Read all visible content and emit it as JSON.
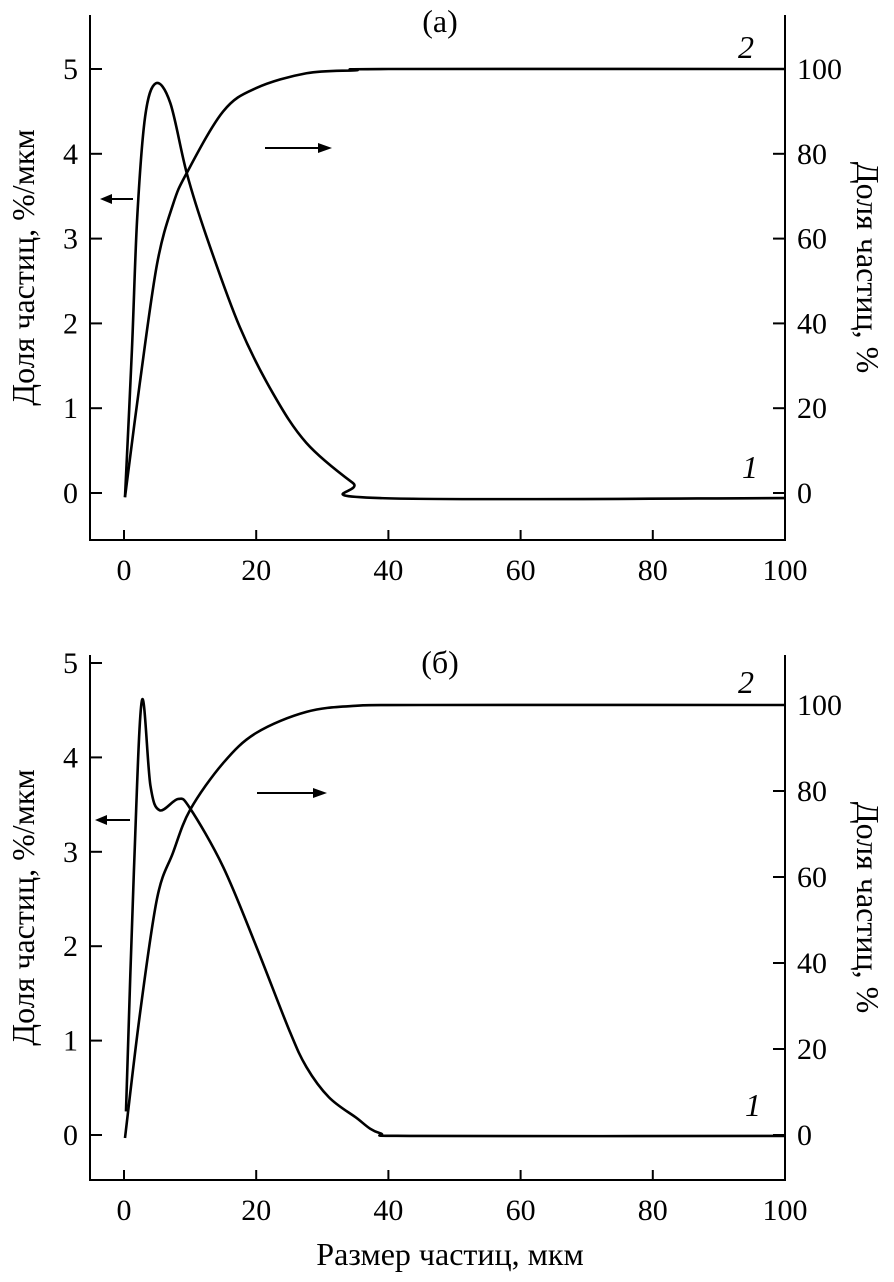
{
  "chart_data": [
    {
      "type": "line",
      "title": "(а)",
      "xlabel": "",
      "ylabel": "Доля частиц, %/мкм",
      "ylabel_right": "Доля частиц, %",
      "xlim": [
        -5,
        100
      ],
      "ylim": [
        -0.3,
        5.5
      ],
      "ylim_right": [
        -6,
        110
      ],
      "xticks": [
        "0",
        "20",
        "40",
        "60",
        "80",
        "100"
      ],
      "yticks": [
        "0",
        "1",
        "2",
        "3",
        "4",
        "5"
      ],
      "yticks_right": [
        "0",
        "20",
        "40",
        "60",
        "80",
        "100"
      ],
      "series": [
        {
          "name": "1",
          "axis": "left",
          "x": [
            0.15,
            1.2,
            2,
            3.2,
            4.8,
            7,
            9.5,
            12.5,
            17.5,
            22.5,
            27.6,
            34.6,
            38.7,
            100
          ],
          "y": [
            -0.05,
            1.69,
            3.25,
            4.44,
            4.83,
            4.6,
            3.77,
            3.02,
            1.96,
            1.18,
            0.59,
            0.12,
            -0.06,
            -0.06
          ]
        },
        {
          "name": "2",
          "axis": "right",
          "x": [
            0.15,
            2.4,
            5,
            7.4,
            9.5,
            15,
            20,
            27.6,
            35,
            40,
            100
          ],
          "y": [
            -1,
            26,
            54,
            68,
            75.5,
            90,
            95.5,
            99,
            99.7,
            100,
            100
          ]
        }
      ]
    },
    {
      "type": "line",
      "title": "(б)",
      "xlabel": "Размер частиц, мкм",
      "ylabel": "Доля частиц, %/мкм",
      "ylabel_right": "Доля частиц, %",
      "xlim": [
        -5,
        100
      ],
      "ylim": [
        -0.3,
        5.3
      ],
      "ylim_right": [
        -7,
        110
      ],
      "xticks": [
        "0",
        "20",
        "40",
        "60",
        "80",
        "100"
      ],
      "yticks": [
        "0",
        "1",
        "2",
        "3",
        "4",
        "5"
      ],
      "yticks_right": [
        "0",
        "20",
        "40",
        "60",
        "80",
        "100"
      ],
      "series": [
        {
          "name": "1",
          "axis": "left",
          "x": [
            0.3,
            1.5,
            2.7,
            4,
            5.4,
            8.2,
            10,
            15,
            20,
            25,
            27.6,
            31,
            35,
            38.7,
            45,
            100
          ],
          "y": [
            0.25,
            2.8,
            4.6,
            3.7,
            3.44,
            3.56,
            3.46,
            2.84,
            2.0,
            1.11,
            0.72,
            0.4,
            0.19,
            0.02,
            -0.01,
            -0.01
          ]
        },
        {
          "name": "2",
          "axis": "right",
          "x": [
            0.15,
            2.4,
            5,
            7.4,
            10,
            15,
            20,
            27.6,
            35,
            45,
            100
          ],
          "y": [
            -0.7,
            28,
            55,
            65.6,
            75.6,
            86.5,
            93.5,
            98.4,
            99.8,
            100,
            100
          ]
        }
      ]
    }
  ]
}
